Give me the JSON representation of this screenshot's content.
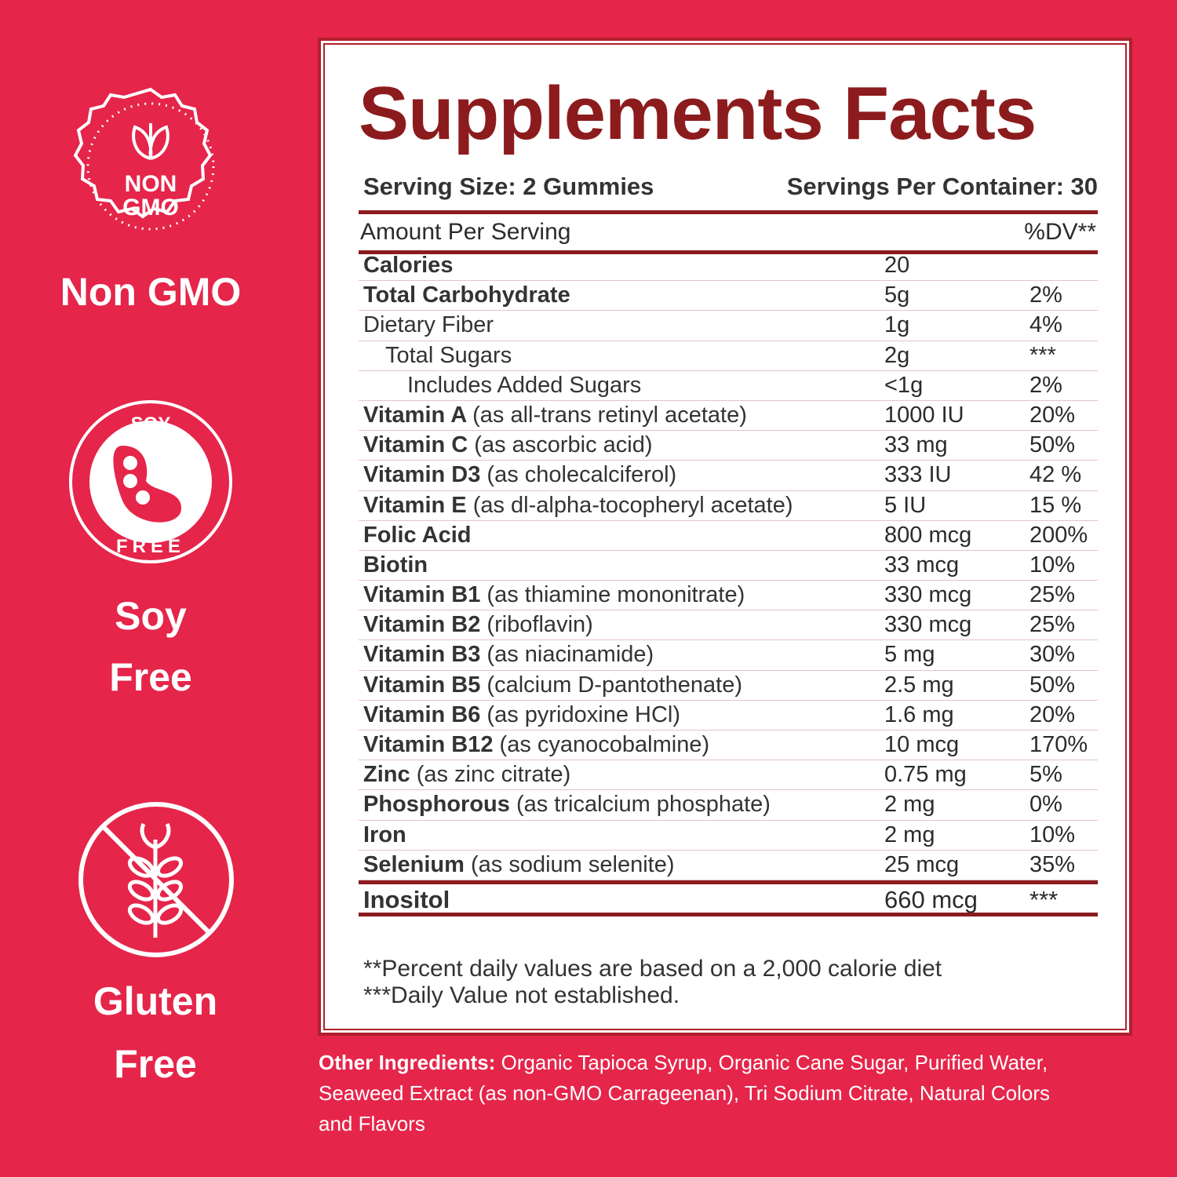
{
  "badges": [
    {
      "icon_text": [
        "NON",
        "GMO"
      ],
      "label": [
        "Non GMO"
      ]
    },
    {
      "icon_text": [
        "SOY",
        "FREE"
      ],
      "label": [
        "Soy",
        "Free"
      ]
    },
    {
      "label": [
        "Gluten",
        "Free"
      ]
    }
  ],
  "panel": {
    "title": "Supplements Facts",
    "serving_size": "Serving Size: 2 Gummies",
    "servings_per_container": "Servings Per Container: 30",
    "header": [
      "Amount Per Serving",
      "%DV**"
    ],
    "rows": [
      {
        "name": "Calories",
        "amount": "20"
      },
      {
        "name": "Total Carbohydrate",
        "amount": "5g",
        "dv": "2%"
      },
      {
        "name": "Dietary Fiber",
        "amount": "1g",
        "dv": "4%"
      },
      {
        "name": "Total Sugars",
        "amount": "2g",
        "dv": "***"
      },
      {
        "name": "Includes Added Sugars",
        "amount": "<1g",
        "dv": "2%"
      },
      {
        "name": "Vitamin A",
        "detail": "(as all-trans retinyl acetate)",
        "amount": "1000 IU",
        "dv": "20%"
      },
      {
        "name": "Vitamin C",
        "detail": "(as ascorbic acid)",
        "amount": "33 mg",
        "dv": "50%"
      },
      {
        "name": "Vitamin D3",
        "detail": "(as cholecalciferol)",
        "amount": "333 IU",
        "dv": "42 %"
      },
      {
        "name": "Vitamin E",
        "detail": "(as dl-alpha-tocopheryl acetate)",
        "amount": "5 IU",
        "dv": "15 %"
      },
      {
        "name": "Folic Acid",
        "amount": "800 mcg",
        "dv": "200%"
      },
      {
        "name": "Biotin",
        "amount": "33 mcg",
        "dv": "10%"
      },
      {
        "name": "Vitamin B1",
        "detail": "(as thiamine mononitrate)",
        "amount": "330 mcg",
        "dv": "25%"
      },
      {
        "name": "Vitamin B2",
        "detail": "(riboflavin)",
        "amount": "330 mcg",
        "dv": "25%"
      },
      {
        "name": "Vitamin B3",
        "detail": "(as niacinamide)",
        "amount": "5 mg",
        "dv": "30%"
      },
      {
        "name": "Vitamin B5",
        "detail": "(calcium D-pantothenate)",
        "amount": "2.5 mg",
        "dv": "50%"
      },
      {
        "name": "Vitamin B6",
        "detail": "(as pyridoxine HCl)",
        "amount": "1.6 mg",
        "dv": "20%"
      },
      {
        "name": "Vitamin B12",
        "detail": "(as cyanocobalmine)",
        "amount": "10 mcg",
        "dv": "170%"
      },
      {
        "name": "Zinc",
        "detail": "(as zinc citrate)",
        "amount": "0.75 mg",
        "dv": "5%"
      },
      {
        "name": "Phosphorous",
        "detail": "(as tricalcium phosphate)",
        "amount": "2 mg",
        "dv": "0%"
      },
      {
        "name": "Iron",
        "amount": "2 mg",
        "dv": "10%"
      },
      {
        "name": "Selenium",
        "detail": "(as sodium selenite)",
        "amount": "25 mcg",
        "dv": "35%"
      },
      {
        "name": "Inositol",
        "amount": "660 mcg",
        "dv": "***"
      }
    ],
    "footnotes": [
      "**Percent daily values are based on a 2,000 calorie diet",
      "***Daily Value not established."
    ]
  },
  "other_ingredients": {
    "label": "Other Ingredients:",
    "text": "Organic Tapioca Syrup, Organic Cane Sugar, Purified Water, Seaweed Extract (as non-GMO Carrageenan), Tri Sodium Citrate, Natural Colors and Flavors"
  }
}
